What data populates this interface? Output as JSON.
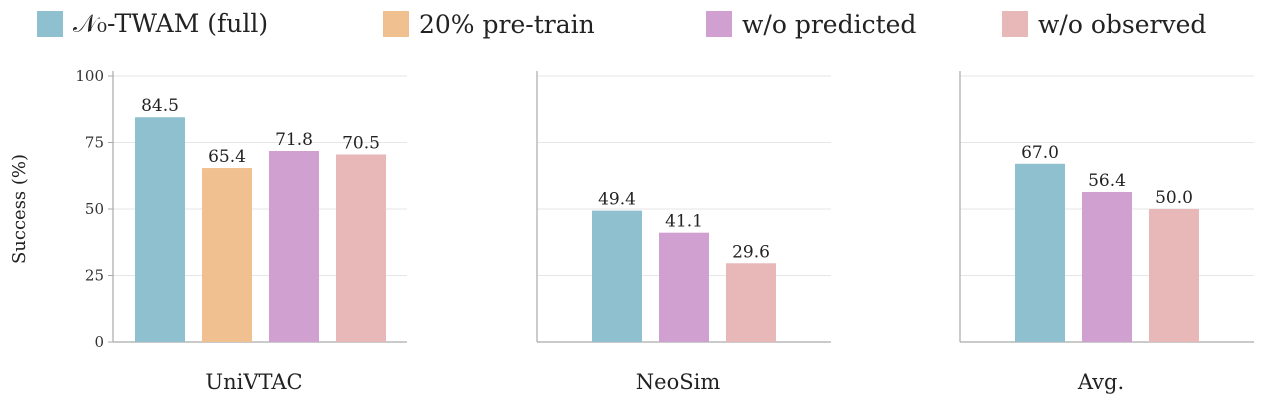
{
  "legend": [
    {
      "label": "𝒩₀-TWAM (full)",
      "color": "#8fc0cf"
    },
    {
      "label": "20% pre-train",
      "color": "#f1c090"
    },
    {
      "label": "w/o predicted",
      "color": "#d0a0d0"
    },
    {
      "label": "w/o observed",
      "color": "#e8b8b8"
    }
  ],
  "chart_data": {
    "type": "bar",
    "ylabel": "Success (%)",
    "ylim": [
      0,
      100
    ],
    "yticks": [
      0,
      25,
      50,
      75,
      100
    ],
    "grid": true,
    "legend_position": "top",
    "panels": [
      {
        "title": "UniVTAC",
        "bars": [
          {
            "series": "𝒩₀-TWAM (full)",
            "value": 84.5,
            "label": "84.5",
            "color": "#8fc0cf"
          },
          {
            "series": "20% pre-train",
            "value": 65.4,
            "label": "65.4",
            "color": "#f1c090"
          },
          {
            "series": "w/o predicted",
            "value": 71.8,
            "label": "71.8",
            "color": "#d0a0d0"
          },
          {
            "series": "w/o observed",
            "value": 70.5,
            "label": "70.5",
            "color": "#e8b8b8"
          }
        ]
      },
      {
        "title": "NeoSim",
        "bars": [
          {
            "series": "𝒩₀-TWAM (full)",
            "value": 49.4,
            "label": "49.4",
            "color": "#8fc0cf"
          },
          {
            "series": "w/o predicted",
            "value": 41.1,
            "label": "41.1",
            "color": "#d0a0d0"
          },
          {
            "series": "w/o observed",
            "value": 29.6,
            "label": "29.6",
            "color": "#e8b8b8"
          }
        ]
      },
      {
        "title": "Avg.",
        "bars": [
          {
            "series": "𝒩₀-TWAM (full)",
            "value": 67.0,
            "label": "67.0",
            "color": "#8fc0cf"
          },
          {
            "series": "w/o predicted",
            "value": 56.4,
            "label": "56.4",
            "color": "#d0a0d0"
          },
          {
            "series": "w/o observed",
            "value": 50.0,
            "label": "50.0",
            "color": "#e8b8b8"
          }
        ]
      }
    ]
  }
}
